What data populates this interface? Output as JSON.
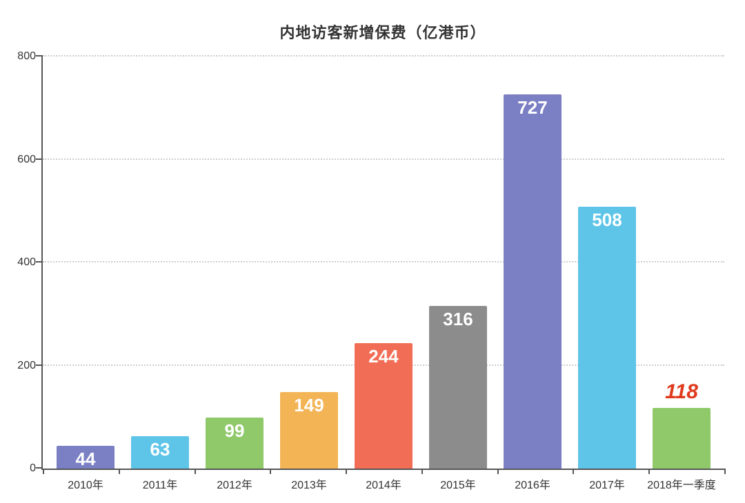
{
  "chart": {
    "type": "bar",
    "title": "内地访客新增保费（亿港币）",
    "title_fontsize": 22,
    "title_color": "#333333",
    "background_color": "#ffffff",
    "axis_color": "#555555",
    "grid_color": "#cccccc",
    "grid_style": "dotted",
    "ylim": [
      0,
      800
    ],
    "yticks": [
      0,
      200,
      400,
      600,
      800
    ],
    "ytick_fontsize": 16,
    "ytick_color": "#333333",
    "xtick_fontsize": 16,
    "xtick_color": "#333333",
    "bar_width_ratio": 0.78,
    "categories": [
      "2010年",
      "2011年",
      "2012年",
      "2013年",
      "2014年",
      "2015年",
      "2016年",
      "2017年",
      "2018年一季度"
    ],
    "values": [
      44,
      63,
      99,
      149,
      244,
      316,
      727,
      508,
      118
    ],
    "bar_colors": [
      "#7b7fc4",
      "#5ec5e8",
      "#8fc96a",
      "#f3b456",
      "#f26d56",
      "#8c8c8c",
      "#7b7fc4",
      "#5ec5e8",
      "#8fc96a"
    ],
    "value_labels": [
      {
        "text": "44",
        "color": "#ffffff",
        "fontsize": 26,
        "placement": "inside-top"
      },
      {
        "text": "63",
        "color": "#ffffff",
        "fontsize": 26,
        "placement": "inside-top"
      },
      {
        "text": "99",
        "color": "#ffffff",
        "fontsize": 26,
        "placement": "inside-top"
      },
      {
        "text": "149",
        "color": "#ffffff",
        "fontsize": 26,
        "placement": "inside-top"
      },
      {
        "text": "244",
        "color": "#ffffff",
        "fontsize": 26,
        "placement": "inside-top"
      },
      {
        "text": "316",
        "color": "#ffffff",
        "fontsize": 26,
        "placement": "inside-top"
      },
      {
        "text": "727",
        "color": "#ffffff",
        "fontsize": 26,
        "placement": "inside-top"
      },
      {
        "text": "508",
        "color": "#ffffff",
        "fontsize": 26,
        "placement": "inside-top"
      },
      {
        "text": "118",
        "color": "#e03a1c",
        "fontsize": 30,
        "placement": "above",
        "bold_italic": true
      }
    ]
  }
}
